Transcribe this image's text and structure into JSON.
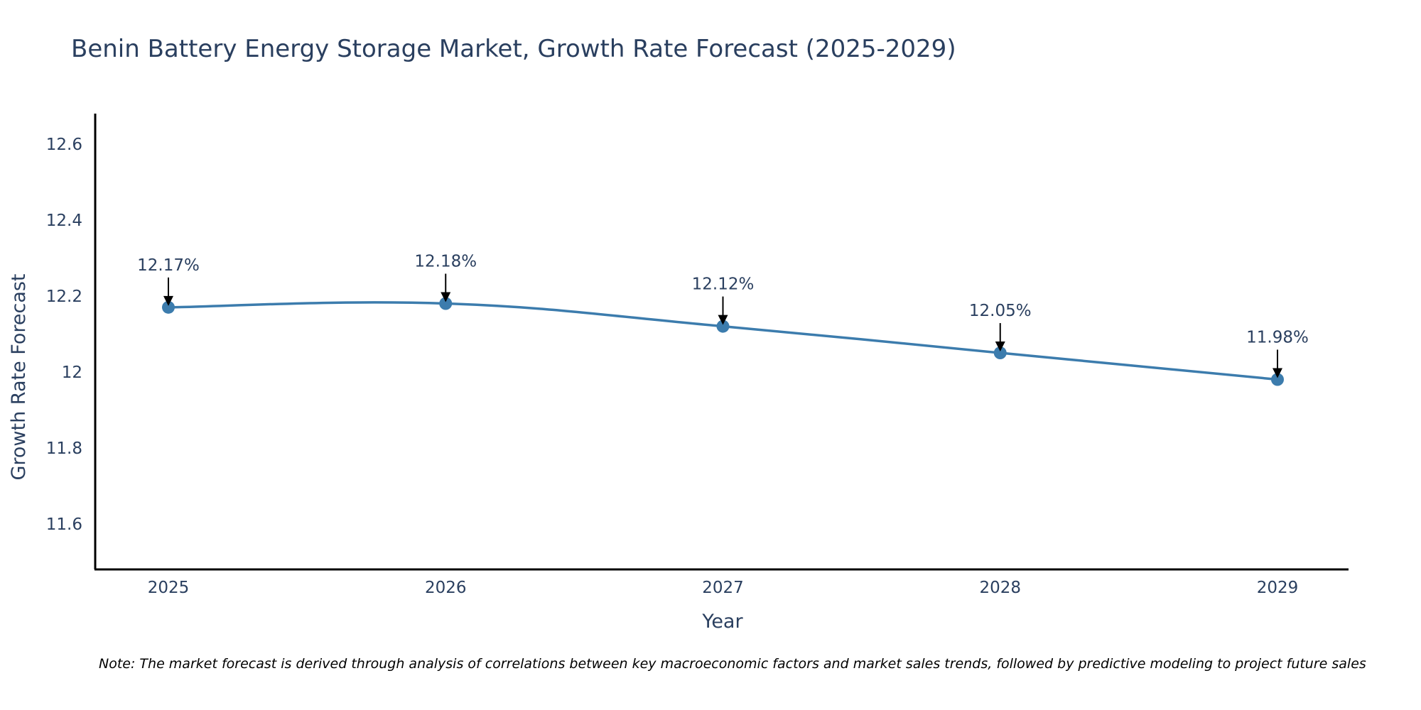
{
  "chart_data": {
    "type": "line",
    "title": "Benin Battery Energy Storage Market, Growth Rate Forecast (2025-2029)",
    "xlabel": "Year",
    "ylabel": "Growth Rate Forecast",
    "categories": [
      "2025",
      "2026",
      "2027",
      "2028",
      "2029"
    ],
    "series": [
      {
        "name": "Growth Rate Forecast",
        "values": [
          12.17,
          12.18,
          12.12,
          12.05,
          11.98
        ],
        "color": "#3c7cad",
        "line_shape": "spline",
        "markers": true
      }
    ],
    "annotations": [
      "12.17%",
      "12.18%",
      "12.12%",
      "12.05%",
      "11.98%"
    ],
    "yticks": [
      11.6,
      11.8,
      12,
      12.2,
      12.4,
      12.6
    ],
    "ytick_labels": [
      "11.6",
      "11.8",
      "12",
      "12.2",
      "12.4",
      "12.6"
    ],
    "ylim": [
      11.48,
      12.68
    ],
    "grid": false,
    "legend": "none",
    "note": "Note: The market forecast is derived through analysis of correlations between key macroeconomic factors and market sales trends, followed by predictive modeling to project future sales"
  }
}
